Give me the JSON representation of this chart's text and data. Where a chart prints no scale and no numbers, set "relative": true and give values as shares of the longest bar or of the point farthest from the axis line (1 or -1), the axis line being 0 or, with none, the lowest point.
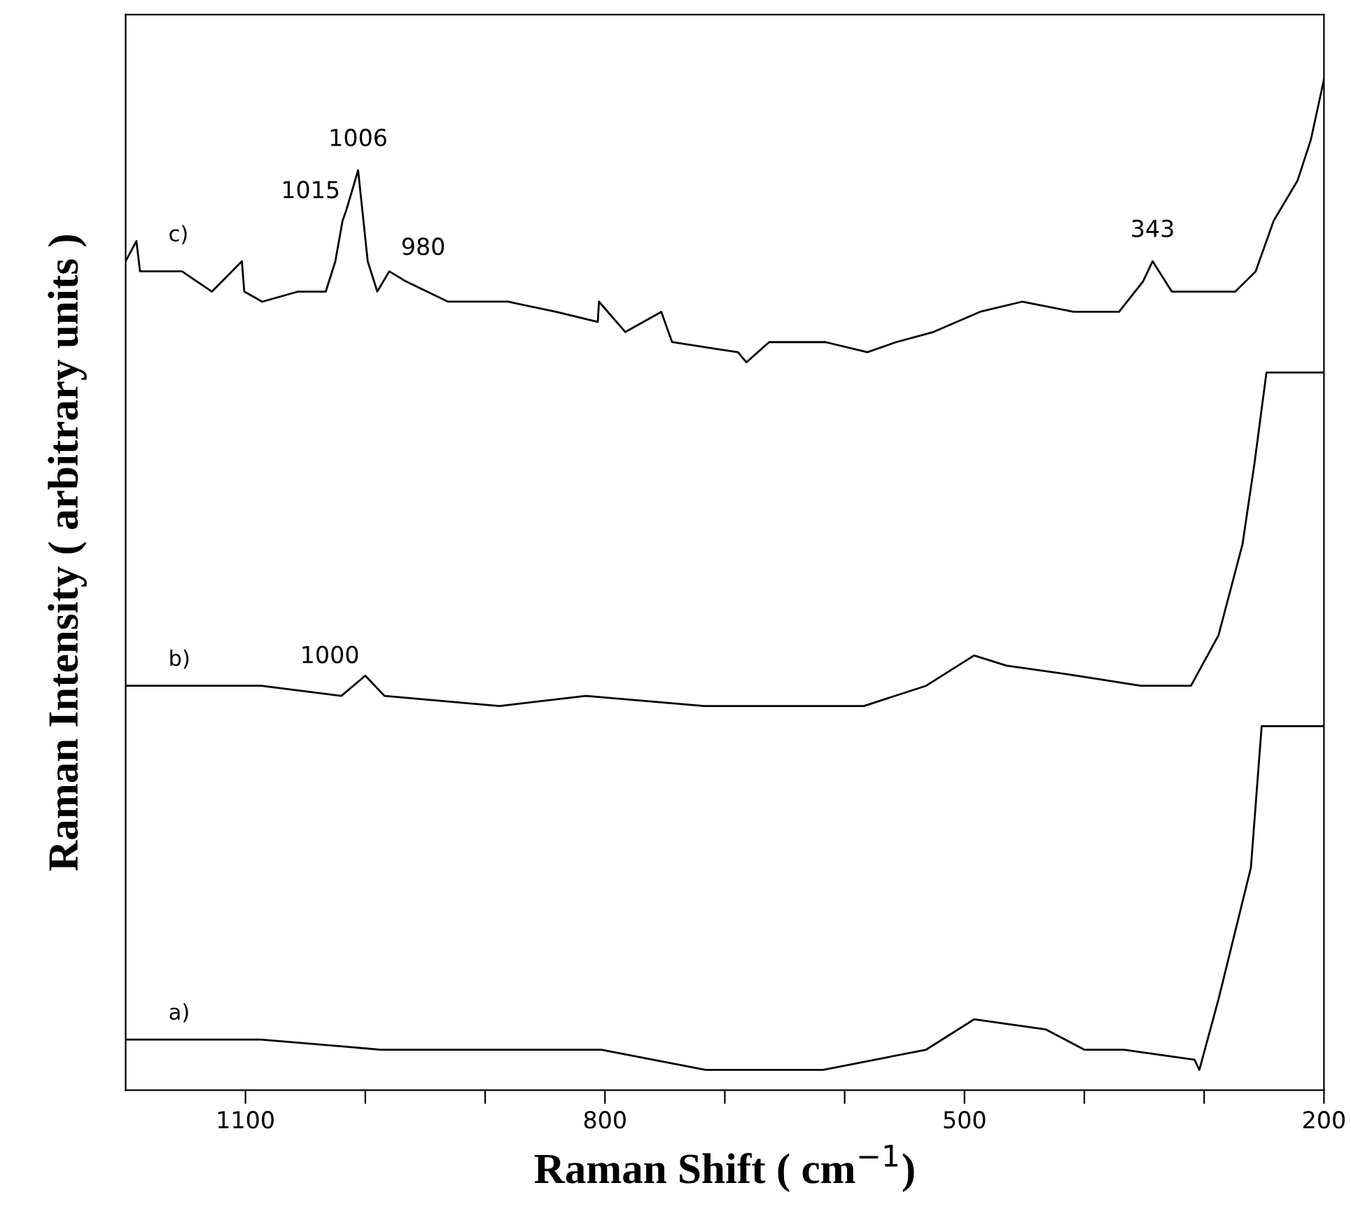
{
  "chart_data": {
    "type": "line",
    "relative": true,
    "xlabel": "Raman Shift ( cm$^{−1}$)",
    "ylabel": "Raman Intensity ( arbitrary units )",
    "xlim": [
      1200,
      200
    ],
    "xticks": [
      {
        "value": 1100,
        "label": "1100"
      },
      {
        "value": 1000,
        "label": null
      },
      {
        "value": 900,
        "label": null
      },
      {
        "value": 800,
        "label": "800"
      },
      {
        "value": 700,
        "label": null
      },
      {
        "value": 600,
        "label": null
      },
      {
        "value": 500,
        "label": "500"
      },
      {
        "value": 400,
        "label": null
      },
      {
        "value": 300,
        "label": null
      },
      {
        "value": 200,
        "label": "200"
      }
    ],
    "tick_labels": "x",
    "grid": false,
    "legend": false,
    "marker": "none",
    "line_style": "solid",
    "series": [
      {
        "name": "c)",
        "color": "#000000",
        "x": [
          1200,
          1191,
          1188,
          1153,
          1128,
          1103,
          1101,
          1086,
          1056,
          1033,
          1025,
          1019,
          1016,
          1006,
          998,
          990,
          980,
          966,
          931,
          881,
          841,
          806,
          805,
          783,
          753,
          744,
          689,
          682,
          663,
          616,
          581,
          557,
          526,
          487,
          452,
          409,
          371,
          351,
          343,
          327,
          292,
          274,
          257,
          242,
          222,
          211,
          200
        ],
        "values": [
          0.82,
          0.84,
          0.81,
          0.81,
          0.79,
          0.82,
          0.79,
          0.78,
          0.79,
          0.79,
          0.82,
          0.86,
          0.87,
          0.91,
          0.82,
          0.79,
          0.81,
          0.8,
          0.78,
          0.78,
          0.77,
          0.76,
          0.78,
          0.75,
          0.77,
          0.74,
          0.73,
          0.72,
          0.74,
          0.74,
          0.73,
          0.74,
          0.75,
          0.77,
          0.78,
          0.77,
          0.77,
          0.8,
          0.82,
          0.79,
          0.79,
          0.79,
          0.81,
          0.86,
          0.9,
          0.94,
          1.0
        ]
      },
      {
        "name": "b)",
        "color": "#000000",
        "x": [
          1200,
          1145,
          1087,
          1020,
          1000,
          984,
          888,
          816,
          717,
          651,
          584,
          532,
          492,
          465,
          406,
          353,
          311,
          288,
          268,
          258,
          248,
          200
        ],
        "values": [
          0.4,
          0.4,
          0.4,
          0.39,
          0.41,
          0.39,
          0.38,
          0.39,
          0.38,
          0.38,
          0.38,
          0.4,
          0.43,
          0.42,
          0.41,
          0.4,
          0.4,
          0.45,
          0.54,
          0.62,
          0.71,
          0.71
        ]
      },
      {
        "name": "a)",
        "color": "#000000",
        "x": [
          1200,
          1087,
          987,
          901,
          803,
          716,
          618,
          532,
          492,
          432,
          400,
          367,
          308,
          304,
          288,
          261,
          252,
          200
        ],
        "values": [
          0.05,
          0.05,
          0.04,
          0.04,
          0.04,
          0.02,
          0.02,
          0.04,
          0.07,
          0.06,
          0.04,
          0.04,
          0.03,
          0.02,
          0.09,
          0.22,
          0.36,
          0.36
        ]
      }
    ],
    "annotations": [
      {
        "text": "1006",
        "x": 1006,
        "y": 0.91
      },
      {
        "text": "1015",
        "x": 1016,
        "y": 0.87
      },
      {
        "text": "980",
        "x": 980,
        "y": 0.81
      },
      {
        "text": "343",
        "x": 343,
        "y": 0.82
      },
      {
        "text": "1000",
        "x": 1000,
        "y": 0.41
      }
    ]
  }
}
